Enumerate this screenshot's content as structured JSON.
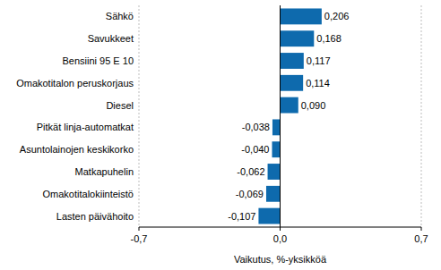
{
  "chart_data": {
    "type": "bar",
    "orientation": "horizontal",
    "categories": [
      "Sähkö",
      "Savukkeet",
      "Bensiini 95 E 10",
      "Omakotitalon peruskorjaus",
      "Diesel",
      "Pitkät linja-automatkat",
      "Asuntolainojen keskikorko",
      "Matkapuhelin",
      "Omakotitalokiinteistö",
      "Lasten päivähoito"
    ],
    "values": [
      0.206,
      0.168,
      0.117,
      0.114,
      0.09,
      -0.038,
      -0.04,
      -0.062,
      -0.069,
      -0.107
    ],
    "value_labels": [
      "0,206",
      "0,168",
      "0,117",
      "0,114",
      "0,090",
      "-0,038",
      "-0,040",
      "-0,062",
      "-0,069",
      "-0,107"
    ],
    "data_labels": true,
    "color": "#0e6aad",
    "x_label": "Vaikutus, %-yksikköä",
    "xlim": [
      -0.7,
      0.7
    ],
    "xticks": [
      {
        "value": -0.7,
        "label": "-0,7"
      },
      {
        "value": 0,
        "label": "0,0"
      },
      {
        "value": 0.7,
        "label": "0,7"
      }
    ],
    "grid": true
  }
}
